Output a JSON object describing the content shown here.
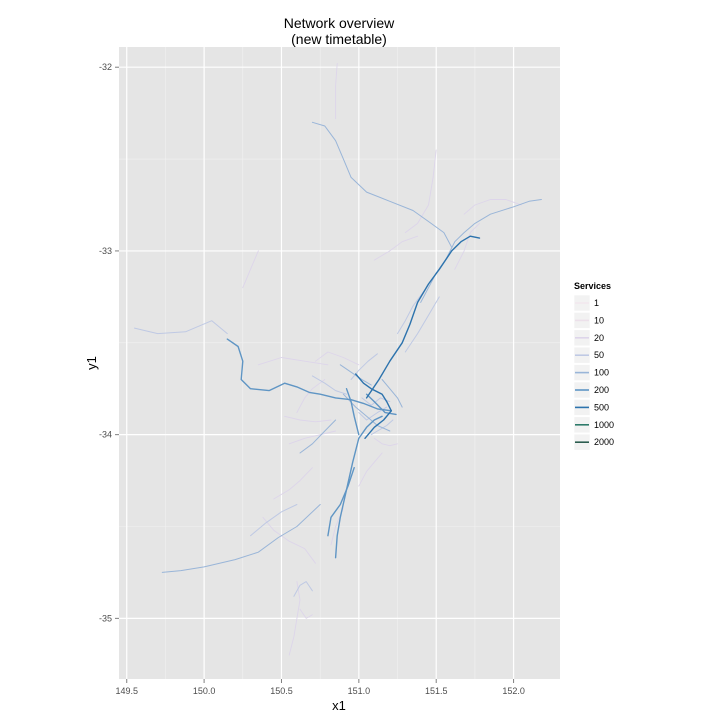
{
  "chart_data": {
    "type": "line",
    "title": "Network overview",
    "subtitle": "(new timetable)",
    "xlabel": "x1",
    "ylabel": "y1",
    "xlim": [
      149.45,
      152.3
    ],
    "ylim": [
      -35.33,
      -31.89
    ],
    "x_ticks": [
      149.5,
      150.0,
      150.5,
      151.0,
      151.5,
      152.0
    ],
    "x_tick_labels": [
      "149.5",
      "150.0",
      "150.5",
      "151.0",
      "151.5",
      "152.0"
    ],
    "y_ticks": [
      -32,
      -33,
      -34,
      -35
    ],
    "y_tick_labels": [
      "-32",
      "-33",
      "-34",
      "-35"
    ],
    "grid": true,
    "legend": {
      "title": "Services",
      "placement": "right",
      "levels": [
        "1",
        "10",
        "20",
        "50",
        "100",
        "200",
        "500",
        "1000",
        "2000"
      ],
      "colors": [
        "#f2e8ee",
        "#ece0ea",
        "#ddd5ea",
        "#bfc9e4",
        "#99b5d8",
        "#5f95c4",
        "#2d73ad",
        "#2d7a6a",
        "#2b5c4f"
      ]
    },
    "series": [
      {
        "level": 4,
        "points": [
          [
            149.73,
            -34.75
          ],
          [
            149.85,
            -34.74
          ],
          [
            150.0,
            -34.72
          ],
          [
            150.2,
            -34.68
          ],
          [
            150.35,
            -34.64
          ],
          [
            150.48,
            -34.56
          ],
          [
            150.6,
            -34.5
          ],
          [
            150.75,
            -34.38
          ]
        ]
      },
      {
        "level": 4,
        "points": [
          [
            150.62,
            -34.1
          ],
          [
            150.7,
            -34.05
          ],
          [
            150.78,
            -33.98
          ],
          [
            150.85,
            -33.92
          ]
        ]
      },
      {
        "level": 5,
        "points": [
          [
            150.15,
            -33.48
          ],
          [
            150.22,
            -33.52
          ],
          [
            150.25,
            -33.6
          ],
          [
            150.24,
            -33.7
          ],
          [
            150.3,
            -33.75
          ],
          [
            150.42,
            -33.76
          ],
          [
            150.52,
            -33.72
          ],
          [
            150.6,
            -33.74
          ],
          [
            150.68,
            -33.77
          ],
          [
            150.75,
            -33.78
          ],
          [
            150.85,
            -33.8
          ],
          [
            150.95,
            -33.81
          ],
          [
            151.03,
            -33.83
          ],
          [
            151.12,
            -33.86
          ],
          [
            151.21,
            -33.87
          ]
        ]
      },
      {
        "level": 5,
        "points": [
          [
            150.85,
            -34.67
          ],
          [
            150.86,
            -34.55
          ],
          [
            150.88,
            -34.45
          ],
          [
            150.92,
            -34.3
          ],
          [
            150.96,
            -34.15
          ],
          [
            151.0,
            -34.02
          ],
          [
            151.05,
            -33.96
          ],
          [
            151.1,
            -33.92
          ],
          [
            151.15,
            -33.9
          ]
        ]
      },
      {
        "level": 5,
        "points": [
          [
            150.8,
            -34.55
          ],
          [
            150.82,
            -34.45
          ],
          [
            150.88,
            -34.38
          ],
          [
            150.93,
            -34.28
          ],
          [
            150.97,
            -34.18
          ]
        ]
      },
      {
        "level": 6,
        "points": [
          [
            151.05,
            -33.8
          ],
          [
            151.13,
            -33.7
          ],
          [
            151.2,
            -33.6
          ],
          [
            151.28,
            -33.5
          ],
          [
            151.33,
            -33.4
          ],
          [
            151.38,
            -33.28
          ],
          [
            151.45,
            -33.18
          ],
          [
            151.52,
            -33.1
          ],
          [
            151.6,
            -33.0
          ],
          [
            151.66,
            -32.95
          ],
          [
            151.72,
            -32.92
          ],
          [
            151.78,
            -32.93
          ]
        ]
      },
      {
        "level": 6,
        "points": [
          [
            151.21,
            -33.87
          ],
          [
            151.18,
            -33.82
          ],
          [
            151.15,
            -33.78
          ],
          [
            151.08,
            -33.75
          ],
          [
            151.03,
            -33.72
          ],
          [
            150.98,
            -33.67
          ]
        ]
      },
      {
        "level": 6,
        "points": [
          [
            151.21,
            -33.87
          ],
          [
            151.16,
            -33.92
          ],
          [
            151.1,
            -33.96
          ],
          [
            151.04,
            -34.02
          ]
        ]
      },
      {
        "level": 5,
        "points": [
          [
            150.92,
            -33.75
          ],
          [
            150.95,
            -33.82
          ],
          [
            150.97,
            -33.9
          ],
          [
            151.0,
            -34.0
          ]
        ]
      },
      {
        "level": 5,
        "points": [
          [
            151.05,
            -33.78
          ],
          [
            151.1,
            -33.82
          ],
          [
            151.17,
            -33.88
          ],
          [
            151.24,
            -33.89
          ]
        ]
      },
      {
        "level": 4,
        "points": [
          [
            150.9,
            -33.78
          ],
          [
            150.98,
            -33.85
          ],
          [
            151.05,
            -33.9
          ],
          [
            151.12,
            -33.95
          ],
          [
            151.2,
            -33.98
          ]
        ]
      },
      {
        "level": 4,
        "points": [
          [
            151.15,
            -33.7
          ],
          [
            151.2,
            -33.75
          ],
          [
            151.25,
            -33.8
          ],
          [
            151.28,
            -33.85
          ]
        ]
      },
      {
        "level": 4,
        "points": [
          [
            150.88,
            -33.62
          ],
          [
            150.95,
            -33.66
          ],
          [
            151.02,
            -33.7
          ],
          [
            151.08,
            -33.73
          ]
        ]
      },
      {
        "level": 4,
        "points": [
          [
            151.4,
            -33.28
          ],
          [
            151.45,
            -33.2
          ],
          [
            151.5,
            -33.12
          ],
          [
            151.56,
            -33.05
          ],
          [
            151.62,
            -32.95
          ],
          [
            151.68,
            -32.9
          ],
          [
            151.75,
            -32.85
          ],
          [
            151.85,
            -32.8
          ],
          [
            152.0,
            -32.76
          ],
          [
            152.1,
            -32.73
          ],
          [
            152.18,
            -32.72
          ]
        ]
      },
      {
        "level": 4,
        "points": [
          [
            151.6,
            -32.98
          ],
          [
            151.55,
            -32.9
          ],
          [
            151.45,
            -32.84
          ],
          [
            151.35,
            -32.78
          ],
          [
            151.2,
            -32.73
          ],
          [
            151.05,
            -32.68
          ],
          [
            150.95,
            -32.6
          ],
          [
            150.9,
            -32.5
          ],
          [
            150.85,
            -32.4
          ],
          [
            150.78,
            -32.32
          ],
          [
            150.7,
            -32.3
          ]
        ]
      },
      {
        "level": 2,
        "points": [
          [
            150.85,
            -32.28
          ],
          [
            150.85,
            -32.1
          ],
          [
            150.86,
            -31.98
          ]
        ]
      },
      {
        "level": 3,
        "points": [
          [
            149.55,
            -33.42
          ],
          [
            149.7,
            -33.45
          ],
          [
            149.88,
            -33.44
          ],
          [
            150.05,
            -33.38
          ],
          [
            150.15,
            -33.45
          ]
        ]
      },
      {
        "level": 2,
        "points": [
          [
            150.35,
            -33.62
          ],
          [
            150.5,
            -33.58
          ],
          [
            150.65,
            -33.6
          ],
          [
            150.8,
            -33.62
          ]
        ]
      },
      {
        "level": 2,
        "points": [
          [
            150.52,
            -33.9
          ],
          [
            150.62,
            -33.92
          ],
          [
            150.72,
            -33.93
          ],
          [
            150.82,
            -33.92
          ]
        ]
      },
      {
        "level": 2,
        "points": [
          [
            150.55,
            -34.05
          ],
          [
            150.65,
            -34.02
          ],
          [
            150.75,
            -34.0
          ],
          [
            150.85,
            -33.98
          ]
        ]
      },
      {
        "level": 3,
        "points": [
          [
            150.7,
            -33.68
          ],
          [
            150.78,
            -33.72
          ],
          [
            150.85,
            -33.76
          ],
          [
            150.92,
            -33.78
          ]
        ]
      },
      {
        "level": 2,
        "points": [
          [
            151.1,
            -34.02
          ],
          [
            151.15,
            -34.05
          ],
          [
            151.2,
            -34.06
          ],
          [
            151.25,
            -34.05
          ]
        ]
      },
      {
        "level": 2,
        "points": [
          [
            150.72,
            -33.6
          ],
          [
            150.8,
            -33.55
          ],
          [
            150.9,
            -33.58
          ],
          [
            151.0,
            -33.62
          ]
        ]
      },
      {
        "level": 3,
        "points": [
          [
            151.25,
            -33.45
          ],
          [
            151.3,
            -33.38
          ],
          [
            151.35,
            -33.3
          ],
          [
            151.42,
            -33.22
          ]
        ]
      },
      {
        "level": 3,
        "points": [
          [
            151.3,
            -33.55
          ],
          [
            151.38,
            -33.45
          ],
          [
            151.45,
            -33.35
          ],
          [
            151.52,
            -33.25
          ]
        ]
      },
      {
        "level": 2,
        "points": [
          [
            151.62,
            -33.1
          ],
          [
            151.68,
            -33.0
          ],
          [
            151.72,
            -32.9
          ],
          [
            151.78,
            -32.85
          ]
        ]
      },
      {
        "level": 2,
        "points": [
          [
            151.3,
            -32.9
          ],
          [
            151.38,
            -32.85
          ],
          [
            151.45,
            -32.75
          ],
          [
            151.48,
            -32.6
          ],
          [
            151.5,
            -32.45
          ]
        ]
      },
      {
        "level": 2,
        "points": [
          [
            151.1,
            -33.05
          ],
          [
            151.2,
            -33.0
          ],
          [
            151.28,
            -32.95
          ],
          [
            151.38,
            -32.92
          ]
        ]
      },
      {
        "level": 2,
        "points": [
          [
            151.68,
            -32.8
          ],
          [
            151.75,
            -32.75
          ],
          [
            151.85,
            -32.72
          ],
          [
            151.95,
            -32.72
          ],
          [
            152.05,
            -32.75
          ]
        ]
      },
      {
        "level": 2,
        "points": [
          [
            150.38,
            -34.45
          ],
          [
            150.45,
            -34.52
          ],
          [
            150.55,
            -34.58
          ],
          [
            150.65,
            -34.62
          ],
          [
            150.72,
            -34.7
          ]
        ]
      },
      {
        "level": 2,
        "points": [
          [
            150.6,
            -34.8
          ],
          [
            150.62,
            -34.9
          ],
          [
            150.6,
            -35.0
          ],
          [
            150.58,
            -35.1
          ],
          [
            150.55,
            -35.2
          ]
        ]
      },
      {
        "level": 3,
        "points": [
          [
            150.58,
            -34.88
          ],
          [
            150.62,
            -34.82
          ],
          [
            150.66,
            -34.8
          ],
          [
            150.7,
            -34.85
          ]
        ]
      },
      {
        "level": 2,
        "points": [
          [
            150.62,
            -34.95
          ],
          [
            150.66,
            -35.0
          ],
          [
            150.7,
            -34.98
          ]
        ]
      },
      {
        "level": 2,
        "points": [
          [
            150.45,
            -34.35
          ],
          [
            150.55,
            -34.3
          ],
          [
            150.62,
            -34.25
          ],
          [
            150.7,
            -34.18
          ]
        ]
      },
      {
        "level": 3,
        "points": [
          [
            150.3,
            -34.55
          ],
          [
            150.4,
            -34.48
          ],
          [
            150.5,
            -34.42
          ],
          [
            150.6,
            -34.38
          ]
        ]
      },
      {
        "level": 2,
        "points": [
          [
            150.6,
            -33.88
          ],
          [
            150.65,
            -33.8
          ],
          [
            150.7,
            -33.75
          ],
          [
            150.78,
            -33.7
          ]
        ]
      },
      {
        "level": 3,
        "points": [
          [
            151.0,
            -33.88
          ],
          [
            151.05,
            -33.92
          ],
          [
            151.12,
            -33.88
          ],
          [
            151.18,
            -33.85
          ]
        ]
      },
      {
        "level": 3,
        "points": [
          [
            151.02,
            -33.8
          ],
          [
            151.08,
            -33.84
          ],
          [
            151.14,
            -33.8
          ],
          [
            151.2,
            -33.82
          ]
        ]
      },
      {
        "level": 3,
        "points": [
          [
            151.08,
            -34.0
          ],
          [
            151.12,
            -33.98
          ],
          [
            151.18,
            -33.95
          ],
          [
            151.22,
            -33.92
          ]
        ]
      },
      {
        "level": 3,
        "points": [
          [
            150.95,
            -33.7
          ],
          [
            151.0,
            -33.65
          ],
          [
            151.06,
            -33.6
          ],
          [
            151.12,
            -33.56
          ]
        ]
      },
      {
        "level": 2,
        "points": [
          [
            151.15,
            -34.1
          ],
          [
            151.1,
            -34.15
          ],
          [
            151.05,
            -34.2
          ],
          [
            151.0,
            -34.28
          ]
        ]
      },
      {
        "level": 2,
        "points": [
          [
            150.9,
            -34.4
          ],
          [
            150.85,
            -34.5
          ],
          [
            150.82,
            -34.6
          ]
        ]
      },
      {
        "level": 2,
        "points": [
          [
            150.25,
            -33.2
          ],
          [
            150.3,
            -33.1
          ],
          [
            150.35,
            -33.0
          ]
        ]
      }
    ]
  }
}
